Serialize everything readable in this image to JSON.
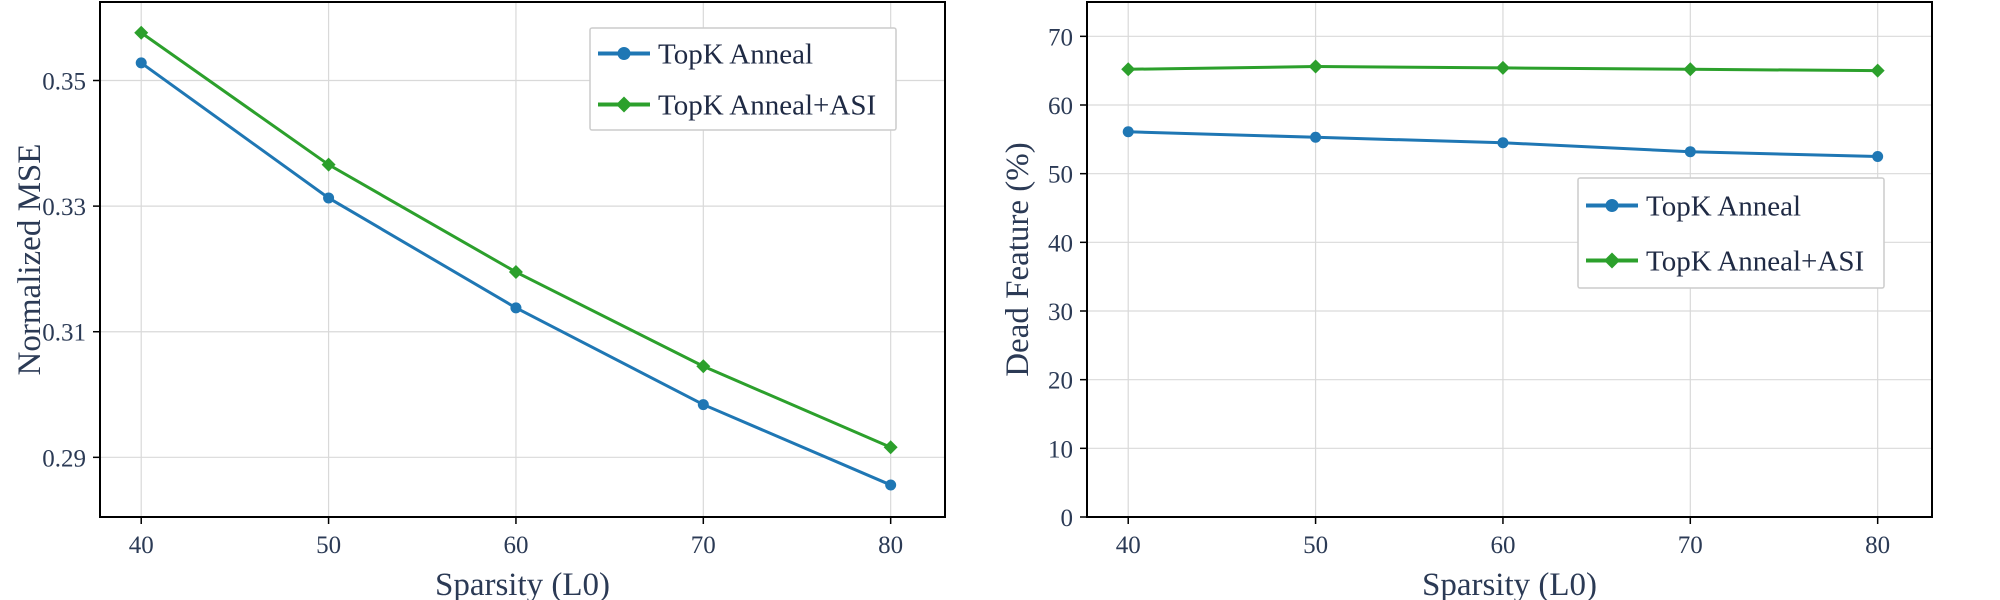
{
  "chart_data": [
    {
      "type": "line",
      "xlabel": "Sparsity (L0)",
      "ylabel": "Normalized MSE",
      "x": [
        40,
        50,
        60,
        70,
        80
      ],
      "xticks": [
        "40",
        "50",
        "60",
        "70",
        "80"
      ],
      "xlim": [
        37.8,
        82.9
      ],
      "ylim": [
        0.2805,
        0.3625
      ],
      "yticks": [
        "0.29",
        "0.31",
        "0.33",
        "0.35"
      ],
      "yticks_values": [
        0.29,
        0.31,
        0.33,
        0.35
      ],
      "series": [
        {
          "name": "TopK Anneal",
          "color": "#1f77b4",
          "marker": "circle",
          "values": [
            0.3528,
            0.3313,
            0.3138,
            0.2984,
            0.2856
          ]
        },
        {
          "name": "TopK Anneal+ASI",
          "color": "#2ca02c",
          "marker": "diamond",
          "values": [
            0.3576,
            0.3366,
            0.3195,
            0.3045,
            0.2916
          ]
        }
      ],
      "legend_position": "top-right"
    },
    {
      "type": "line",
      "xlabel": "Sparsity (L0)",
      "ylabel": "Dead Feature (%)",
      "x": [
        40,
        50,
        60,
        70,
        80
      ],
      "xticks": [
        "40",
        "50",
        "60",
        "70",
        "80"
      ],
      "xlim": [
        37.8,
        82.9
      ],
      "ylim": [
        0,
        75
      ],
      "yticks": [
        "0",
        "10",
        "20",
        "30",
        "40",
        "50",
        "60",
        "70"
      ],
      "yticks_values": [
        0,
        10,
        20,
        30,
        40,
        50,
        60,
        70
      ],
      "series": [
        {
          "name": "TopK Anneal",
          "color": "#1f77b4",
          "marker": "circle",
          "values": [
            56.1,
            55.3,
            54.5,
            53.2,
            52.5
          ]
        },
        {
          "name": "TopK Anneal+ASI",
          "color": "#2ca02c",
          "marker": "diamond",
          "values": [
            65.2,
            65.6,
            65.4,
            65.2,
            65.0
          ]
        }
      ],
      "legend_position": "center-right"
    }
  ]
}
